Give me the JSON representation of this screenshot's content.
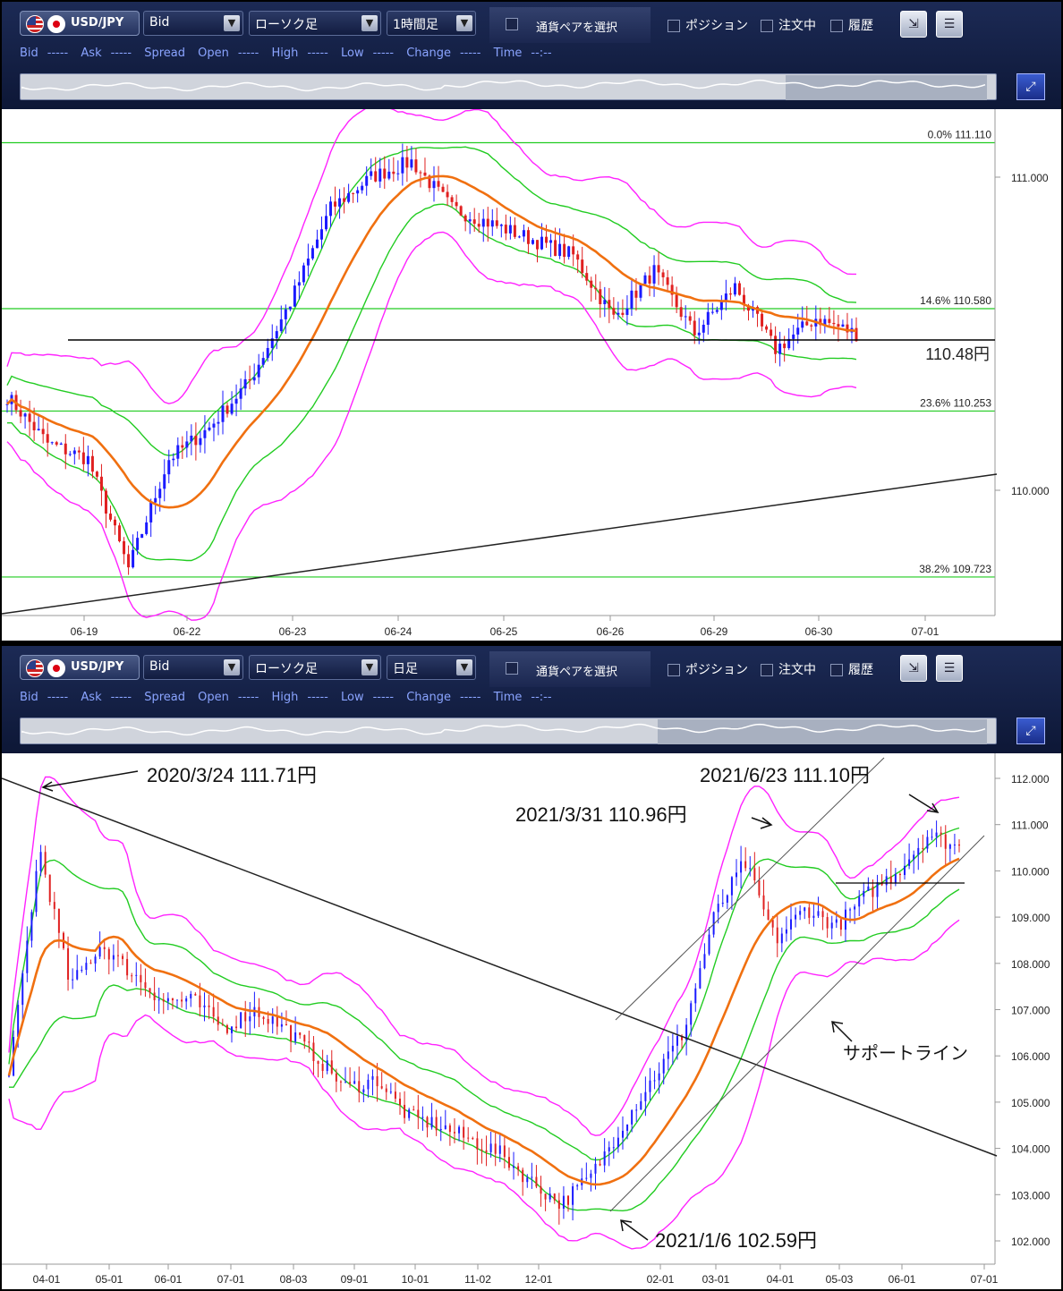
{
  "top": {
    "pair": "USD/JPY",
    "price_type": "Bid",
    "chart_type": "ローソク足",
    "timeframe": "1時間足",
    "pair_select": "通貨ペアを選択",
    "check_position": "ポジション",
    "check_order": "注文中",
    "check_history": "履歴",
    "quote": {
      "bid": "Bid",
      "bid_v": "-----",
      "ask": "Ask",
      "ask_v": "-----",
      "spread": "Spread",
      "open": "Open",
      "open_v": "-----",
      "high": "High",
      "high_v": "-----",
      "low": "Low",
      "low_v": "-----",
      "change": "Change",
      "change_v": "-----",
      "time": "Time",
      "time_v": "--:--"
    },
    "y_ticks": [
      "111.000",
      "110.000"
    ],
    "x_ticks": [
      "06-19",
      "06-22",
      "06-23",
      "06-24",
      "06-25",
      "06-26",
      "06-29",
      "06-30",
      "07-01"
    ],
    "fib": [
      {
        "label": "0.0%  111.110",
        "value": 111.11
      },
      {
        "label": "14.6%  110.580",
        "value": 110.58
      },
      {
        "label": "23.6%  110.253",
        "value": 110.253
      },
      {
        "label": "38.2%  109.723",
        "value": 109.723
      }
    ],
    "hline_label": "110.48円",
    "hline_value": 110.48
  },
  "bottom": {
    "pair": "USD/JPY",
    "price_type": "Bid",
    "chart_type": "ローソク足",
    "timeframe": "日足",
    "pair_select": "通貨ペアを選択",
    "check_position": "ポジション",
    "check_order": "注文中",
    "check_history": "履歴",
    "quote": {
      "bid": "Bid",
      "bid_v": "-----",
      "ask": "Ask",
      "ask_v": "-----",
      "spread": "Spread",
      "open": "Open",
      "open_v": "-----",
      "high": "High",
      "high_v": "-----",
      "low": "Low",
      "low_v": "-----",
      "change": "Change",
      "change_v": "-----",
      "time": "Time",
      "time_v": "--:--"
    },
    "y_ticks": [
      "112.000",
      "111.000",
      "110.000",
      "109.000",
      "108.000",
      "107.000",
      "106.000",
      "105.000",
      "104.000",
      "103.000",
      "102.000"
    ],
    "x_ticks": [
      "04-01",
      "05-01",
      "06-01",
      "07-01",
      "08-03",
      "09-01",
      "10-01",
      "11-02",
      "12-01",
      "02-01",
      "03-01",
      "04-01",
      "05-03",
      "06-01",
      "07-01"
    ],
    "annotations": {
      "a1": "2020/3/24 111.71円",
      "a2": "2021/6/23 111.10円",
      "a3": "2021/3/31 110.96円",
      "a4": "サポートライン",
      "a5": "2021/1/6 102.59円"
    }
  },
  "colors": {
    "bull": "#1a1aff",
    "bear": "#e02020",
    "ma": "#f07010",
    "band1": "#22cc22",
    "band2": "#ff22ff",
    "fib": "#22cc22"
  }
}
